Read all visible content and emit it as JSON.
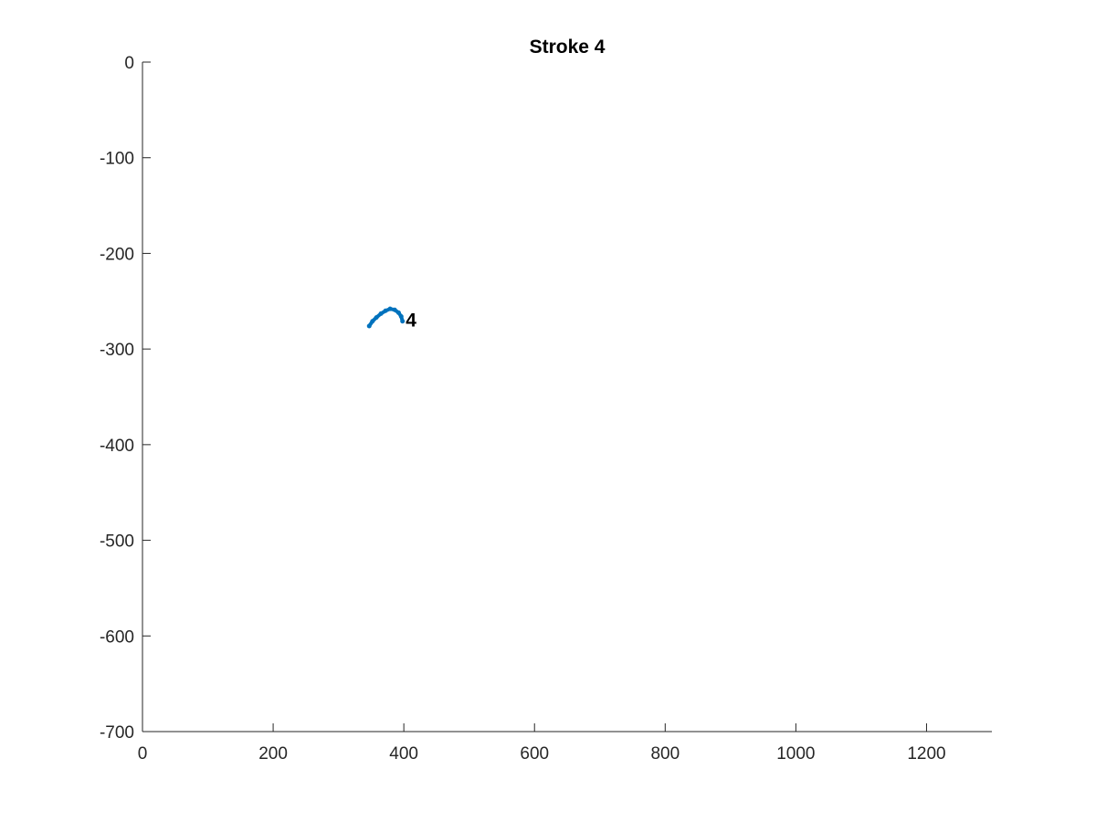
{
  "chart_data": {
    "type": "line",
    "title": "Stroke 4",
    "xlabel": "",
    "ylabel": "",
    "xlim": [
      0,
      1300
    ],
    "ylim": [
      -700,
      0
    ],
    "x_ticks": [
      0,
      200,
      400,
      600,
      800,
      1000,
      1200
    ],
    "y_ticks": [
      0,
      -100,
      -200,
      -300,
      -400,
      -500,
      -600,
      -700
    ],
    "x_tick_labels": [
      "0",
      "200",
      "400",
      "600",
      "800",
      "1000",
      "1200"
    ],
    "y_tick_labels": [
      "0",
      "-100",
      "-200",
      "-300",
      "-400",
      "-500",
      "-600",
      "-700"
    ],
    "grid": false,
    "series": [
      {
        "color": "#0072BD",
        "x": [
          347,
          352,
          358,
          365,
          372,
          379,
          386,
          392,
          396,
          398
        ],
        "y": [
          -276,
          -271,
          -267,
          -263,
          -260,
          -258,
          -259,
          -262,
          -266,
          -271
        ]
      }
    ],
    "annotations": [
      {
        "text": "4",
        "x": 403,
        "y": -270
      }
    ]
  }
}
